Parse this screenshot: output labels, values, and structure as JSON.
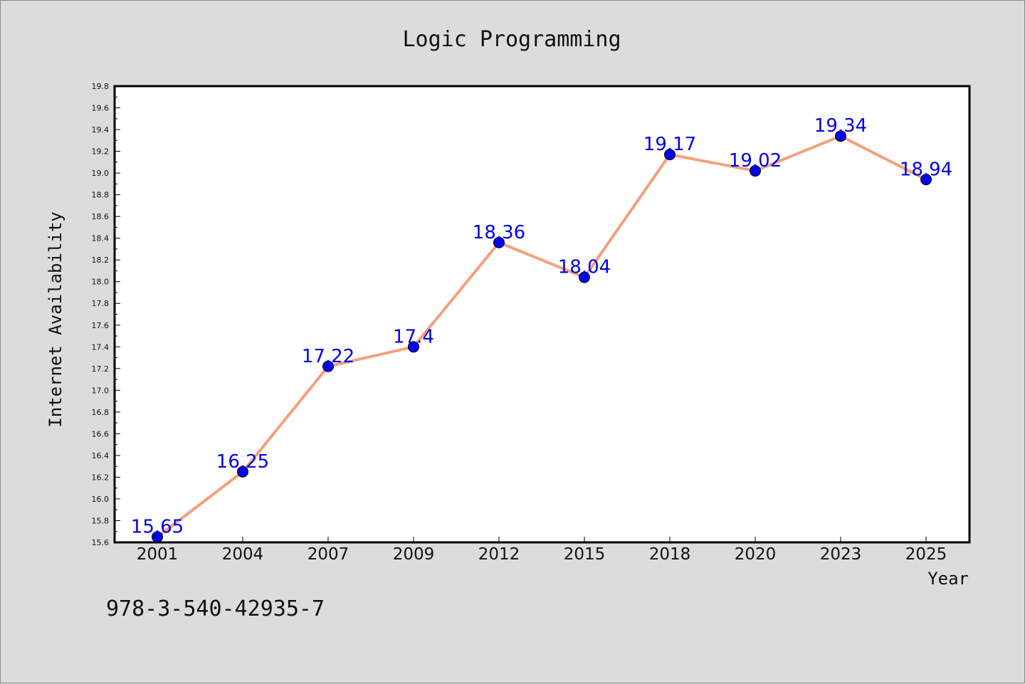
{
  "chart_data": {
    "type": "line",
    "title": "Logic Programming",
    "xlabel": "Year",
    "ylabel": "Internet Availability",
    "categories": [
      "2001",
      "2004",
      "2007",
      "2009",
      "2012",
      "2015",
      "2018",
      "2020",
      "2023",
      "2025"
    ],
    "series": [
      {
        "values": [
          15.65,
          16.25,
          17.22,
          17.4,
          18.36,
          18.04,
          19.17,
          19.02,
          19.34,
          18.94
        ],
        "data_labels": [
          "15.65",
          "16.25",
          "17.22",
          "17.4",
          "18.36",
          "18.04",
          "19.17",
          "19.02",
          "19.34",
          "18.94"
        ],
        "line_color": "#f4a07c",
        "marker_color": "#0000ee"
      }
    ],
    "ylim": [
      15.6,
      19.8
    ],
    "yticks": [
      "15.6",
      "15.8",
      "16.0",
      "16.2",
      "16.4",
      "16.6",
      "16.8",
      "17.0",
      "17.2",
      "17.4",
      "17.6",
      "17.8",
      "18.0",
      "18.2",
      "18.4",
      "18.6",
      "18.8",
      "19.0",
      "19.2",
      "19.4",
      "19.6",
      "19.8"
    ],
    "grid": false,
    "legend": "none",
    "label_color": "#0000ee"
  },
  "footer": {
    "isbn": "978-3-540-42935-7"
  }
}
